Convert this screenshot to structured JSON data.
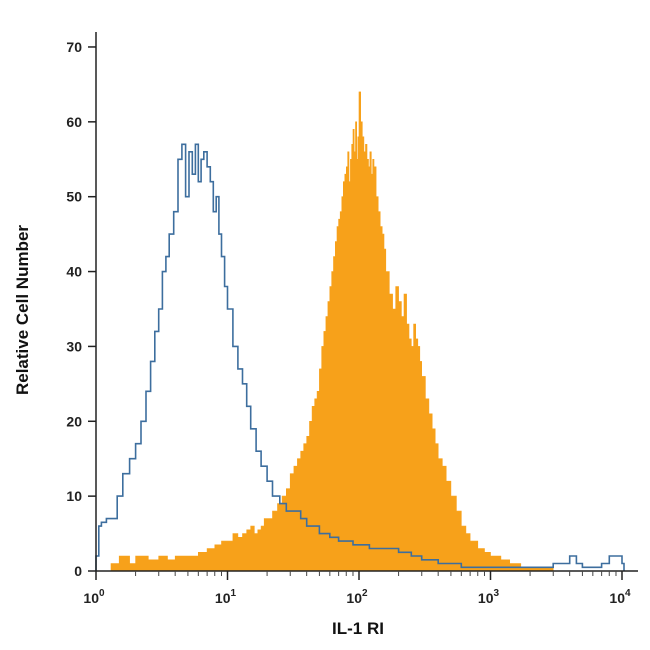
{
  "chart_data": {
    "type": "area",
    "title": "",
    "xlabel": "IL-1 RI",
    "ylabel": "Relative Cell Number",
    "x_scale": "log",
    "xlim": [
      1,
      10000
    ],
    "ylim": [
      0,
      72
    ],
    "x_ticks": [
      {
        "value": 1,
        "base": "10",
        "exp": "0"
      },
      {
        "value": 10,
        "base": "10",
        "exp": "1"
      },
      {
        "value": 100,
        "base": "10",
        "exp": "2"
      },
      {
        "value": 1000,
        "base": "10",
        "exp": "3"
      },
      {
        "value": 10000,
        "base": "10",
        "exp": "4"
      }
    ],
    "y_ticks": [
      "0",
      "10",
      "20",
      "30",
      "40",
      "50",
      "60",
      "70"
    ],
    "grid": false,
    "legend": "none",
    "series": [
      {
        "style": "outline",
        "color": "#3d6e9e",
        "x": [
          1.0,
          1.05,
          1.1,
          1.2,
          1.3,
          1.45,
          1.6,
          1.8,
          2.0,
          2.2,
          2.4,
          2.6,
          2.8,
          3.0,
          3.2,
          3.4,
          3.6,
          3.9,
          4.2,
          4.5,
          4.8,
          5.1,
          5.4,
          5.7,
          6.0,
          6.3,
          6.6,
          7.0,
          7.4,
          7.8,
          8.2,
          8.6,
          9.0,
          9.5,
          10.0,
          11.0,
          12.0,
          13.0,
          14.0,
          15.0,
          16.5,
          18.0,
          20.0,
          22.0,
          25.0,
          28.0,
          32.0,
          36.0,
          40.0,
          45.0,
          50.0,
          60.0,
          70.0,
          80.0,
          90.0,
          100.0,
          120.0,
          140.0,
          170.0,
          200.0,
          250.0,
          300.0,
          350.0,
          400.0,
          500.0,
          600.0,
          700.0,
          800.0,
          900.0,
          1000.0,
          1200.0,
          1500.0,
          2000.0,
          2500.0,
          3000.0,
          3500.0,
          4000.0,
          4500.0,
          5000.0,
          5500.0,
          6000.0,
          7000.0,
          8000.0,
          9000.0,
          10000.0
        ],
        "values": [
          2,
          6,
          6.5,
          7,
          7,
          10,
          13,
          15,
          17,
          20,
          24,
          28,
          32,
          35,
          40,
          42,
          45,
          48,
          55,
          57,
          50,
          56,
          53,
          57,
          52,
          55,
          56,
          54,
          52,
          48,
          50,
          45,
          42,
          38,
          35,
          30,
          27,
          25,
          22,
          19,
          16,
          14,
          12,
          10,
          9,
          8,
          8,
          7,
          6,
          6,
          5,
          4.5,
          4,
          4,
          3.5,
          3.5,
          3,
          3,
          3,
          2.5,
          2,
          1.5,
          1.5,
          1,
          1,
          0.5,
          0.5,
          0.5,
          0.5,
          0.5,
          0.5,
          0.5,
          0.5,
          0.5,
          1,
          1,
          2,
          1,
          0.5,
          0.5,
          0.5,
          1,
          2,
          2,
          1
        ]
      },
      {
        "style": "filled",
        "color": "#f7a11a",
        "x": [
          1.3,
          1.5,
          1.8,
          2.0,
          2.5,
          3.0,
          3.5,
          4.0,
          5.0,
          6.0,
          7.0,
          8.0,
          9.0,
          10.0,
          11.0,
          12.0,
          13.0,
          14.0,
          15.0,
          16.0,
          17.0,
          18.0,
          19.0,
          20.0,
          22.0,
          24.0,
          26.0,
          28.0,
          30.0,
          32.0,
          34.0,
          36.0,
          38.0,
          40.0,
          42.0,
          44.0,
          46.0,
          48.0,
          50.0,
          52.0,
          54.0,
          56.0,
          58.0,
          60.0,
          62.0,
          64.0,
          66.0,
          68.0,
          70.0,
          72.0,
          74.0,
          76.0,
          78.0,
          80.0,
          82.0,
          84.0,
          86.0,
          88.0,
          90.0,
          92.0,
          94.0,
          96.0,
          98.0,
          100.0,
          103.0,
          106.0,
          109.0,
          112.0,
          115.0,
          118.0,
          121.0,
          124.0,
          127.0,
          130.0,
          135.0,
          140.0,
          145.0,
          150.0,
          155.0,
          160.0,
          170.0,
          180.0,
          190.0,
          200.0,
          210.0,
          220.0,
          230.0,
          240.0,
          250.0,
          260.0,
          270.0,
          280.0,
          290.0,
          300.0,
          320.0,
          340.0,
          360.0,
          380.0,
          400.0,
          430.0,
          460.0,
          500.0,
          550.0,
          600.0,
          650.0,
          700.0,
          800.0,
          900.0,
          1000.0,
          1100.0,
          1200.0,
          1300.0,
          1400.0,
          1500.0,
          1700.0,
          2000.0,
          2500.0,
          3000.0
        ],
        "values": [
          1,
          2,
          1,
          2,
          1.5,
          2,
          1.5,
          2,
          2,
          2.5,
          3,
          3.5,
          4,
          4,
          5,
          4.5,
          5,
          5.5,
          6,
          5,
          5.5,
          6,
          7,
          7,
          8,
          9,
          10,
          11,
          13,
          14,
          15,
          16,
          17,
          18,
          20,
          22,
          23,
          24,
          27,
          30,
          32,
          34,
          36,
          38,
          40,
          42,
          44,
          46,
          47,
          48,
          50,
          52,
          53,
          54,
          56,
          52,
          55,
          57,
          59,
          56,
          60,
          55,
          58,
          64,
          60,
          58,
          56,
          57,
          55,
          54,
          56,
          53,
          55,
          54,
          50,
          48,
          46,
          45,
          43,
          40,
          37,
          35,
          38,
          36,
          34,
          37,
          33,
          31,
          30,
          33,
          31,
          30,
          28,
          26,
          23,
          21,
          19,
          17,
          15,
          14,
          12,
          10,
          8,
          6,
          5,
          4,
          3,
          2.5,
          2,
          2,
          1.5,
          1.5,
          1,
          1,
          0.5,
          0.5,
          0.5,
          0
        ]
      }
    ]
  }
}
